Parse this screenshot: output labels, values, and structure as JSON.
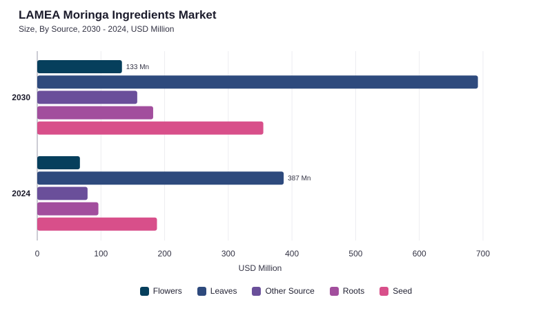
{
  "header": {
    "title": "LAMEA Moringa Ingredients Market",
    "subtitle": "Size, By Source, 2030 - 2024, USD Million"
  },
  "chart_data": {
    "type": "bar",
    "orientation": "horizontal",
    "categories": [
      "2030",
      "2024"
    ],
    "series": [
      {
        "name": "Flowers",
        "color": "#063f5c",
        "values": [
          133,
          67
        ]
      },
      {
        "name": "Leaves",
        "color": "#2e4a7d",
        "values": [
          692,
          387
        ]
      },
      {
        "name": "Other Source",
        "color": "#6a4f9a",
        "values": [
          157,
          79
        ]
      },
      {
        "name": "Roots",
        "color": "#a24e9d",
        "values": [
          182,
          96
        ]
      },
      {
        "name": "Seed",
        "color": "#d84f8a",
        "values": [
          355,
          188
        ]
      }
    ],
    "data_labels": [
      {
        "category": "2030",
        "series": "Flowers",
        "text": "133 Mn"
      },
      {
        "category": "2024",
        "series": "Leaves",
        "text": "387 Mn"
      }
    ],
    "xlabel": "USD Million",
    "ylabel": "",
    "xlim": [
      0,
      700
    ],
    "xticks": [
      0,
      100,
      200,
      300,
      400,
      500,
      600,
      700
    ],
    "grid": true,
    "legend_position": "bottom"
  }
}
